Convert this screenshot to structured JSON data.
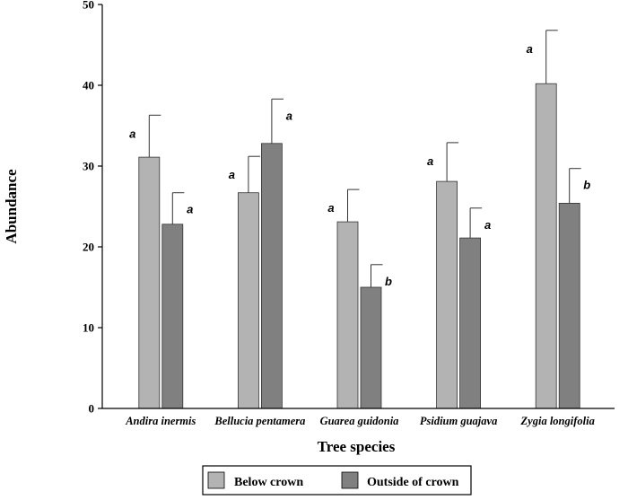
{
  "chart_data": {
    "type": "bar",
    "title": "",
    "xlabel": "Tree species",
    "ylabel": "Abundance",
    "ylim": [
      0,
      50
    ],
    "yticks": [
      0,
      10,
      20,
      30,
      40,
      50
    ],
    "categories": [
      "Andira inermis",
      "Bellucia pentamera",
      "Guarea guidonia",
      "Psidium guajava",
      "Zygia longifolia"
    ],
    "series": [
      {
        "name": "Below crown",
        "color": "#b3b3b3",
        "values": [
          31.1,
          26.7,
          23.1,
          28.1,
          40.2
        ],
        "error": [
          5.2,
          4.5,
          4.0,
          4.8,
          6.6
        ],
        "labels": [
          "a",
          "a",
          "a",
          "a",
          "a"
        ]
      },
      {
        "name": "Outside of crown",
        "color": "#808080",
        "values": [
          22.8,
          32.8,
          15.0,
          21.1,
          25.4
        ],
        "error": [
          3.9,
          5.5,
          2.8,
          3.7,
          4.3
        ],
        "labels": [
          "a",
          "a",
          "b",
          "a",
          "b"
        ]
      }
    ],
    "grid": false,
    "legend_position": "bottom"
  }
}
